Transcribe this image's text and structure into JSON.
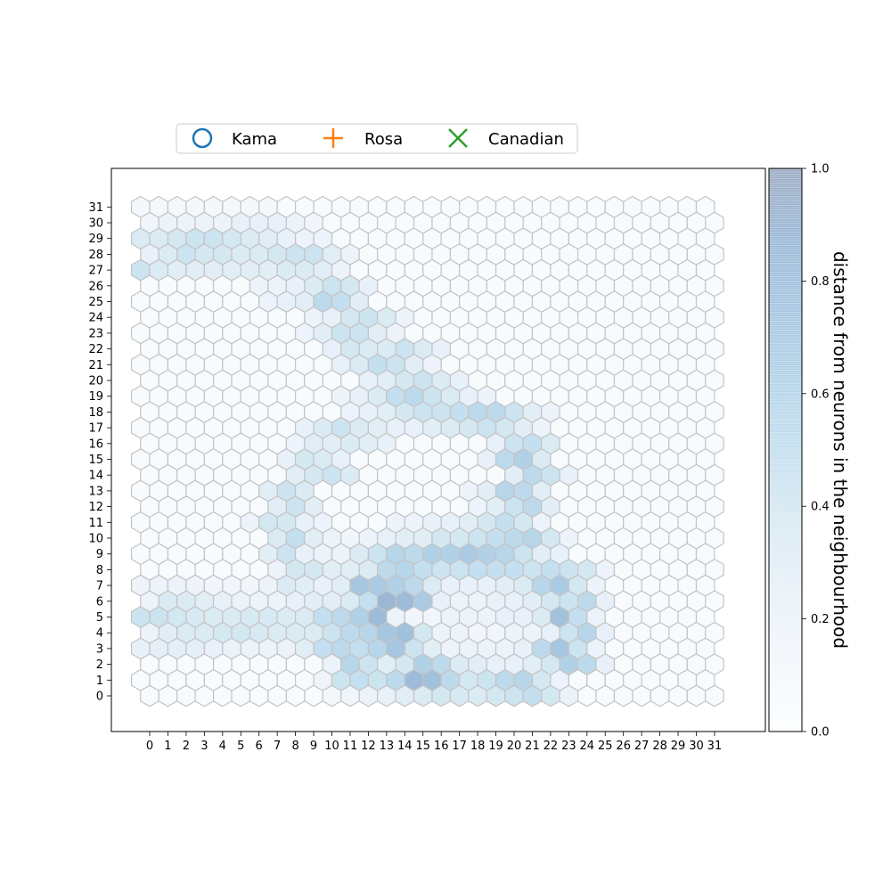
{
  "legend": {
    "placement": "top-center",
    "entries": [
      {
        "label": "Kama",
        "marker": "circle",
        "color": "#1f77b4"
      },
      {
        "label": "Rosa",
        "marker": "plus",
        "color": "#ff7f0e"
      },
      {
        "label": "Canadian",
        "marker": "x",
        "color": "#2ca02c"
      }
    ]
  },
  "colorbar": {
    "label": "distance from neurons in the neighbourhood",
    "ticks": [
      "0.0",
      "0.2",
      "0.4",
      "0.6",
      "0.8",
      "1.0"
    ],
    "range": [
      0,
      1
    ],
    "colormap": "Blues",
    "low_color": "#f7fbff",
    "high_color": "#08306b",
    "opacity": 0.4
  },
  "chart_data": {
    "type": "heatmap",
    "subtype": "hexagonal self-organizing map (U-matrix)",
    "grid_size": [
      32,
      32
    ],
    "x_ticks": [
      "0",
      "1",
      "2",
      "3",
      "4",
      "5",
      "6",
      "7",
      "8",
      "9",
      "10",
      "11",
      "12",
      "13",
      "14",
      "15",
      "16",
      "17",
      "18",
      "19",
      "20",
      "21",
      "22",
      "23",
      "24",
      "25",
      "26",
      "27",
      "28",
      "29",
      "30",
      "31"
    ],
    "y_ticks": [
      "0",
      "1",
      "2",
      "3",
      "4",
      "5",
      "6",
      "7",
      "8",
      "9",
      "10",
      "11",
      "12",
      "13",
      "14",
      "15",
      "16",
      "17",
      "18",
      "19",
      "20",
      "21",
      "22",
      "23",
      "24",
      "25",
      "26",
      "27",
      "28",
      "29",
      "30",
      "31"
    ],
    "grid": false,
    "value_range": [
      0,
      1
    ],
    "default_value": 0.05,
    "values_by_row": [
      {
        "row": 1,
        "values": {
          "10": 0.18,
          "11": 0.45,
          "12": 0.5,
          "13": 0.45,
          "14": 0.55,
          "15": 0.85,
          "16": 0.8,
          "17": 0.55,
          "18": 0.4,
          "19": 0.45,
          "20": 0.55,
          "21": 0.6,
          "22": 0.4,
          "23": 0.2
        }
      },
      {
        "row": 0,
        "values": {
          "10": 0.12,
          "11": 0.15,
          "12": 0.2,
          "13": 0.25,
          "14": 0.3,
          "15": 0.35,
          "16": 0.4,
          "17": 0.38,
          "18": 0.35,
          "19": 0.4,
          "20": 0.45,
          "21": 0.5,
          "22": 0.4,
          "23": 0.2
        }
      },
      {
        "row": 2,
        "values": {
          "10": 0.2,
          "11": 0.6,
          "12": 0.45,
          "13": 0.3,
          "14": 0.4,
          "15": 0.65,
          "16": 0.55,
          "17": 0.35,
          "18": 0.3,
          "19": 0.25,
          "20": 0.25,
          "21": 0.3,
          "22": 0.4,
          "23": 0.65,
          "24": 0.55,
          "25": 0.25
        }
      },
      {
        "row": 3,
        "values": {
          "0": 0.25,
          "1": 0.28,
          "2": 0.28,
          "3": 0.28,
          "4": 0.25,
          "5": 0.22,
          "6": 0.2,
          "7": 0.2,
          "8": 0.22,
          "9": 0.3,
          "10": 0.5,
          "11": 0.55,
          "12": 0.5,
          "13": 0.6,
          "14": 0.75,
          "15": 0.45,
          "16": 0.3,
          "17": 0.2,
          "18": 0.2,
          "19": 0.2,
          "20": 0.2,
          "21": 0.25,
          "22": 0.55,
          "23": 0.75,
          "24": 0.45,
          "25": 0.2
        }
      },
      {
        "row": 4,
        "values": {
          "0": 0.2,
          "1": 0.3,
          "2": 0.35,
          "3": 0.35,
          "4": 0.4,
          "5": 0.4,
          "6": 0.38,
          "7": 0.35,
          "8": 0.35,
          "9": 0.35,
          "10": 0.45,
          "11": 0.55,
          "12": 0.6,
          "13": 0.75,
          "14": 0.8,
          "15": 0.4,
          "16": 0.2,
          "17": 0.2,
          "18": 0.15,
          "19": 0.15,
          "20": 0.2,
          "21": 0.2,
          "22": 0.25,
          "23": 0.45,
          "24": 0.6,
          "25": 0.25
        }
      },
      {
        "row": 5,
        "values": {
          "0": 0.45,
          "1": 0.45,
          "2": 0.4,
          "3": 0.38,
          "4": 0.35,
          "5": 0.35,
          "6": 0.38,
          "7": 0.38,
          "8": 0.35,
          "9": 0.35,
          "10": 0.5,
          "11": 0.55,
          "12": 0.65,
          "13": 0.85,
          "14": 0.2,
          "15": 0.15,
          "16": 0.15,
          "17": 0.2,
          "18": 0.2,
          "19": 0.2,
          "20": 0.25,
          "21": 0.25,
          "22": 0.35,
          "23": 0.8,
          "24": 0.5,
          "25": 0.2
        }
      },
      {
        "row": 6,
        "values": {
          "0": 0.2,
          "1": 0.35,
          "2": 0.35,
          "3": 0.3,
          "4": 0.25,
          "5": 0.2,
          "6": 0.2,
          "7": 0.2,
          "8": 0.25,
          "9": 0.3,
          "10": 0.3,
          "11": 0.35,
          "12": 0.5,
          "13": 0.9,
          "14": 0.85,
          "15": 0.7,
          "16": 0.25,
          "17": 0.2,
          "18": 0.2,
          "19": 0.25,
          "20": 0.25,
          "21": 0.3,
          "22": 0.4,
          "23": 0.45,
          "24": 0.55,
          "25": 0.25
        }
      },
      {
        "row": 7,
        "values": {
          "0": 0.18,
          "1": 0.2,
          "2": 0.2,
          "3": 0.18,
          "4": 0.15,
          "5": 0.15,
          "6": 0.15,
          "7": 0.2,
          "8": 0.35,
          "9": 0.3,
          "10": 0.25,
          "11": 0.3,
          "12": 0.75,
          "13": 0.7,
          "14": 0.65,
          "15": 0.55,
          "16": 0.35,
          "17": 0.25,
          "18": 0.25,
          "19": 0.25,
          "20": 0.3,
          "21": 0.35,
          "22": 0.6,
          "23": 0.7,
          "24": 0.4,
          "25": 0.2
        }
      },
      {
        "row": 8,
        "values": {
          "7": 0.2,
          "8": 0.4,
          "9": 0.4,
          "10": 0.3,
          "11": 0.3,
          "12": 0.35,
          "13": 0.55,
          "14": 0.6,
          "15": 0.5,
          "16": 0.45,
          "17": 0.45,
          "18": 0.5,
          "19": 0.5,
          "20": 0.5,
          "21": 0.45,
          "22": 0.5,
          "23": 0.45,
          "24": 0.4,
          "25": 0.2
        }
      },
      {
        "row": 9,
        "values": {
          "7": 0.3,
          "8": 0.45,
          "9": 0.25,
          "10": 0.2,
          "11": 0.2,
          "12": 0.35,
          "13": 0.45,
          "14": 0.6,
          "15": 0.55,
          "16": 0.65,
          "17": 0.65,
          "18": 0.7,
          "19": 0.65,
          "20": 0.6,
          "21": 0.45,
          "22": 0.3,
          "23": 0.25
        }
      },
      {
        "row": 10,
        "values": {
          "7": 0.35,
          "8": 0.5,
          "9": 0.3,
          "10": 0.2,
          "11": 0.15,
          "12": 0.2,
          "13": 0.25,
          "14": 0.3,
          "15": 0.3,
          "16": 0.4,
          "17": 0.4,
          "18": 0.45,
          "19": 0.5,
          "20": 0.55,
          "21": 0.6,
          "22": 0.4,
          "23": 0.2
        }
      },
      {
        "row": 11,
        "values": {
          "6": 0.2,
          "7": 0.4,
          "8": 0.4,
          "9": 0.25,
          "10": 0.2,
          "14": 0.2,
          "15": 0.2,
          "16": 0.25,
          "17": 0.25,
          "18": 0.3,
          "19": 0.4,
          "20": 0.5,
          "21": 0.4,
          "22": 0.2
        }
      },
      {
        "row": 12,
        "values": {
          "7": 0.3,
          "8": 0.45,
          "9": 0.3,
          "18": 0.2,
          "19": 0.3,
          "20": 0.45,
          "21": 0.55,
          "22": 0.3
        }
      },
      {
        "row": 13,
        "values": {
          "7": 0.3,
          "8": 0.45,
          "9": 0.35,
          "18": 0.2,
          "19": 0.3,
          "20": 0.6,
          "21": 0.55,
          "22": 0.3
        }
      },
      {
        "row": 14,
        "values": {
          "8": 0.3,
          "9": 0.4,
          "10": 0.45,
          "11": 0.35,
          "20": 0.3,
          "21": 0.55,
          "22": 0.45,
          "23": 0.25
        }
      },
      {
        "row": 15,
        "values": {
          "8": 0.25,
          "9": 0.4,
          "10": 0.35,
          "11": 0.25,
          "19": 0.25,
          "20": 0.55,
          "21": 0.65,
          "22": 0.35
        }
      },
      {
        "row": 16,
        "values": {
          "8": 0.2,
          "9": 0.3,
          "10": 0.3,
          "11": 0.35,
          "12": 0.3,
          "13": 0.25,
          "19": 0.25,
          "20": 0.45,
          "21": 0.5,
          "22": 0.35
        }
      },
      {
        "row": 17,
        "values": {
          "9": 0.25,
          "10": 0.35,
          "11": 0.45,
          "12": 0.35,
          "13": 0.3,
          "14": 0.25,
          "15": 0.25,
          "16": 0.3,
          "17": 0.35,
          "18": 0.4,
          "19": 0.45,
          "20": 0.4,
          "21": 0.3,
          "22": 0.2
        }
      },
      {
        "row": 18,
        "values": {
          "11": 0.2,
          "12": 0.25,
          "13": 0.3,
          "14": 0.4,
          "15": 0.45,
          "16": 0.45,
          "17": 0.5,
          "18": 0.55,
          "19": 0.55,
          "20": 0.45,
          "21": 0.3,
          "22": 0.2
        }
      },
      {
        "row": 19,
        "values": {
          "11": 0.2,
          "12": 0.25,
          "13": 0.35,
          "14": 0.5,
          "15": 0.55,
          "16": 0.45,
          "17": 0.35,
          "18": 0.25,
          "19": 0.2
        }
      },
      {
        "row": 20,
        "values": {
          "12": 0.25,
          "13": 0.3,
          "14": 0.4,
          "15": 0.45,
          "16": 0.35,
          "17": 0.25
        }
      },
      {
        "row": 21,
        "values": {
          "11": 0.25,
          "12": 0.35,
          "13": 0.5,
          "14": 0.45,
          "15": 0.3,
          "16": 0.2
        }
      },
      {
        "row": 22,
        "values": {
          "10": 0.25,
          "11": 0.4,
          "12": 0.35,
          "13": 0.35,
          "14": 0.45,
          "15": 0.35,
          "16": 0.25
        }
      },
      {
        "row": 23,
        "values": {
          "9": 0.2,
          "10": 0.3,
          "11": 0.45,
          "12": 0.45,
          "13": 0.3,
          "14": 0.2
        }
      },
      {
        "row": 24,
        "values": {
          "9": 0.2,
          "10": 0.25,
          "11": 0.4,
          "12": 0.45,
          "13": 0.35,
          "14": 0.2
        }
      },
      {
        "row": 25,
        "values": {
          "7": 0.2,
          "8": 0.25,
          "9": 0.3,
          "10": 0.55,
          "11": 0.5,
          "12": 0.3
        }
      },
      {
        "row": 26,
        "values": {
          "6": 0.2,
          "7": 0.2,
          "8": 0.25,
          "9": 0.35,
          "10": 0.45,
          "11": 0.4,
          "12": 0.25
        }
      },
      {
        "row": 27,
        "values": {
          "0": 0.45,
          "1": 0.35,
          "2": 0.3,
          "3": 0.3,
          "4": 0.3,
          "5": 0.3,
          "6": 0.3,
          "7": 0.3,
          "8": 0.35,
          "9": 0.35,
          "10": 0.3,
          "11": 0.2
        }
      },
      {
        "row": 28,
        "values": {
          "0": 0.25,
          "1": 0.35,
          "2": 0.45,
          "3": 0.4,
          "4": 0.4,
          "5": 0.35,
          "6": 0.35,
          "7": 0.4,
          "8": 0.45,
          "9": 0.45,
          "10": 0.3,
          "11": 0.2
        }
      },
      {
        "row": 29,
        "values": {
          "0": 0.35,
          "1": 0.35,
          "2": 0.4,
          "3": 0.45,
          "4": 0.45,
          "5": 0.4,
          "6": 0.35,
          "7": 0.3,
          "8": 0.25,
          "9": 0.2,
          "10": 0.2
        }
      },
      {
        "row": 30,
        "values": {
          "0": 0.15,
          "1": 0.2,
          "2": 0.2,
          "3": 0.2,
          "4": 0.2,
          "5": 0.25,
          "6": 0.25,
          "7": 0.25,
          "8": 0.2,
          "9": 0.15
        }
      },
      {
        "row": 31,
        "values": {
          "0": 0.1,
          "1": 0.1,
          "2": 0.1,
          "3": 0.1,
          "4": 0.1,
          "5": 0.1,
          "6": 0.1,
          "7": 0.1
        }
      }
    ]
  }
}
